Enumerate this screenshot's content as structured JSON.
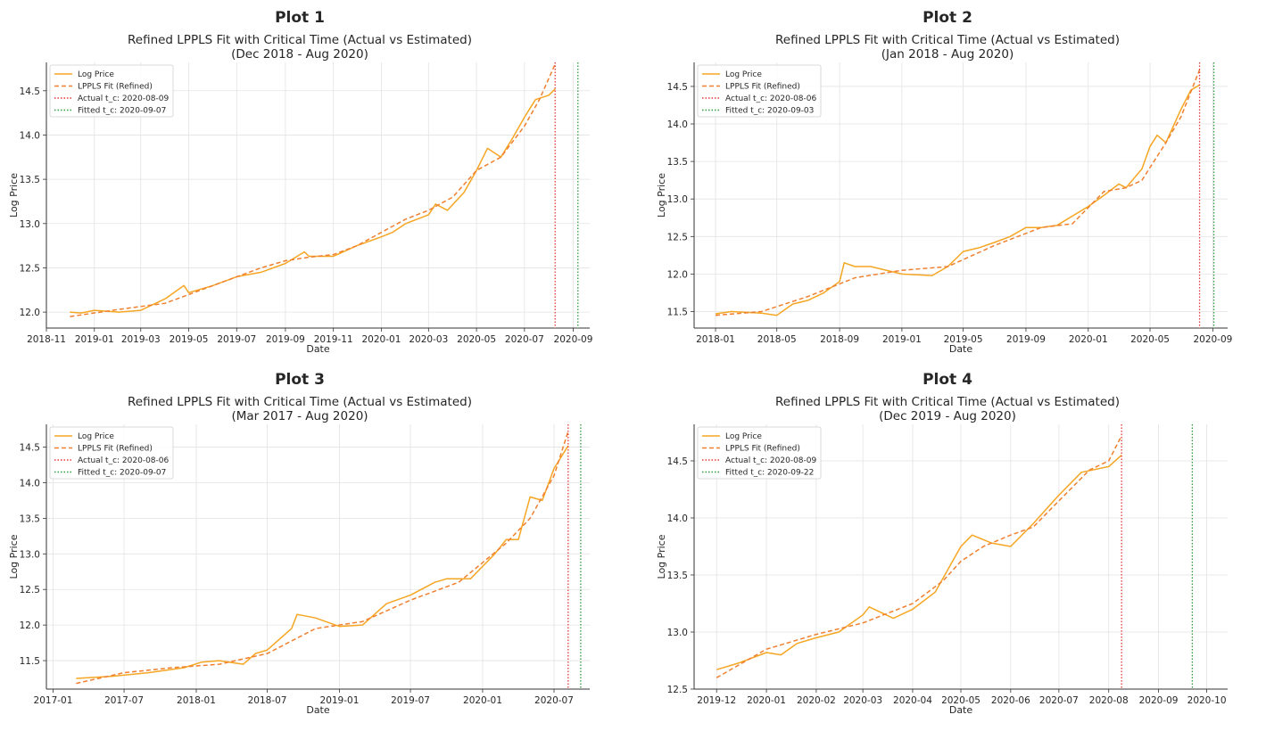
{
  "chart_data": [
    {
      "type": "line",
      "panel_title": "Plot 1",
      "title": "Refined LPPLS Fit with Critical Time (Actual vs Estimated)",
      "subtitle": "(Dec 2018 - Aug 2020)",
      "xlabel": "Date",
      "ylabel": "Log Price",
      "x_type": "date",
      "xlim": [
        "2018-11-01",
        "2020-09-22"
      ],
      "ylim": [
        11.82,
        14.82
      ],
      "xticks": [
        {
          "date": "2018-11-01",
          "label": "2018-11"
        },
        {
          "date": "2019-01-01",
          "label": "2019-01"
        },
        {
          "date": "2019-03-01",
          "label": "2019-03"
        },
        {
          "date": "2019-05-01",
          "label": "2019-05"
        },
        {
          "date": "2019-07-01",
          "label": "2019-07"
        },
        {
          "date": "2019-09-01",
          "label": "2019-09"
        },
        {
          "date": "2019-11-01",
          "label": "2019-11"
        },
        {
          "date": "2020-01-01",
          "label": "2020-01"
        },
        {
          "date": "2020-03-01",
          "label": "2020-03"
        },
        {
          "date": "2020-05-01",
          "label": "2020-05"
        },
        {
          "date": "2020-07-01",
          "label": "2020-07"
        },
        {
          "date": "2020-09-01",
          "label": "2020-09"
        }
      ],
      "yticks": [
        12.0,
        12.5,
        13.0,
        13.5,
        14.0,
        14.5
      ],
      "ytick_labels": [
        "12.0",
        "12.5",
        "13.0",
        "13.5",
        "14.0",
        "14.5"
      ],
      "grid": true,
      "legend_position": "top-left",
      "series": [
        {
          "name": "Log Price",
          "style": "solid",
          "color": "#f5a623",
          "x": [
            "2018-12-01",
            "2018-12-15",
            "2019-01-01",
            "2019-02-01",
            "2019-03-01",
            "2019-04-01",
            "2019-04-25",
            "2019-05-01",
            "2019-06-01",
            "2019-07-01",
            "2019-08-01",
            "2019-09-01",
            "2019-09-25",
            "2019-10-01",
            "2019-11-01",
            "2019-12-01",
            "2020-01-01",
            "2020-01-15",
            "2020-02-01",
            "2020-03-01",
            "2020-03-10",
            "2020-03-25",
            "2020-04-15",
            "2020-05-01",
            "2020-05-15",
            "2020-06-01",
            "2020-06-15",
            "2020-07-01",
            "2020-07-15",
            "2020-08-01",
            "2020-08-09"
          ],
          "y": [
            12.0,
            11.99,
            12.02,
            12.0,
            12.02,
            12.15,
            12.3,
            12.22,
            12.3,
            12.4,
            12.45,
            12.55,
            12.68,
            12.63,
            12.63,
            12.75,
            12.85,
            12.9,
            13.0,
            13.1,
            13.22,
            13.15,
            13.35,
            13.6,
            13.85,
            13.75,
            13.95,
            14.2,
            14.4,
            14.45,
            14.52
          ]
        },
        {
          "name": "LPPLS Fit (Refined)",
          "style": "dashed",
          "color": "#f08030",
          "x": [
            "2018-12-01",
            "2019-02-01",
            "2019-04-01",
            "2019-06-01",
            "2019-08-01",
            "2019-09-01",
            "2019-10-01",
            "2019-11-01",
            "2019-12-01",
            "2020-01-01",
            "2020-02-01",
            "2020-03-01",
            "2020-04-01",
            "2020-05-01",
            "2020-06-01",
            "2020-07-01",
            "2020-07-20",
            "2020-08-09"
          ],
          "y": [
            11.95,
            12.03,
            12.1,
            12.3,
            12.5,
            12.58,
            12.62,
            12.65,
            12.75,
            12.9,
            13.05,
            13.15,
            13.3,
            13.6,
            13.75,
            14.1,
            14.4,
            14.8
          ]
        }
      ],
      "vlines": [
        {
          "name": "Actual t_c: 2020-08-09",
          "date": "2020-08-09",
          "color": "#e53935"
        },
        {
          "name": "Fitted t_c: 2020-09-07",
          "date": "2020-09-07",
          "color": "#2e9c3a"
        }
      ]
    },
    {
      "type": "line",
      "panel_title": "Plot 2",
      "title": "Refined LPPLS Fit with Critical Time (Actual vs Estimated)",
      "subtitle": "(Jan 2018 - Aug 2020)",
      "xlabel": "Date",
      "ylabel": "Log Price",
      "x_type": "date",
      "xlim": [
        "2017-11-20",
        "2020-09-30"
      ],
      "ylim": [
        11.28,
        14.82
      ],
      "xticks": [
        {
          "date": "2018-01-01",
          "label": "2018-01"
        },
        {
          "date": "2018-05-01",
          "label": "2018-05"
        },
        {
          "date": "2018-09-01",
          "label": "2018-09"
        },
        {
          "date": "2019-01-01",
          "label": "2019-01"
        },
        {
          "date": "2019-05-01",
          "label": "2019-05"
        },
        {
          "date": "2019-09-01",
          "label": "2019-09"
        },
        {
          "date": "2020-01-01",
          "label": "2020-01"
        },
        {
          "date": "2020-05-01",
          "label": "2020-05"
        },
        {
          "date": "2020-09-01",
          "label": "2020-09"
        }
      ],
      "yticks": [
        11.5,
        12.0,
        12.5,
        13.0,
        13.5,
        14.0,
        14.5
      ],
      "ytick_labels": [
        "11.5",
        "12.0",
        "12.5",
        "13.0",
        "13.5",
        "14.0",
        "14.5"
      ],
      "grid": true,
      "legend_position": "top-left",
      "series": [
        {
          "name": "Log Price",
          "style": "solid",
          "color": "#f5a623",
          "x": [
            "2018-01-01",
            "2018-02-01",
            "2018-04-01",
            "2018-05-01",
            "2018-06-01",
            "2018-07-01",
            "2018-08-01",
            "2018-09-01",
            "2018-09-10",
            "2018-10-01",
            "2018-11-01",
            "2019-01-01",
            "2019-03-01",
            "2019-04-01",
            "2019-05-01",
            "2019-06-01",
            "2019-07-01",
            "2019-08-01",
            "2019-09-01",
            "2019-10-01",
            "2019-11-01",
            "2020-01-01",
            "2020-02-01",
            "2020-03-01",
            "2020-03-15",
            "2020-04-15",
            "2020-05-01",
            "2020-05-15",
            "2020-06-01",
            "2020-07-01",
            "2020-07-20",
            "2020-08-06"
          ],
          "y": [
            11.47,
            11.5,
            11.48,
            11.45,
            11.6,
            11.65,
            11.75,
            11.9,
            12.15,
            12.1,
            12.1,
            12.0,
            11.98,
            12.1,
            12.3,
            12.35,
            12.42,
            12.5,
            12.62,
            12.62,
            12.65,
            12.9,
            13.05,
            13.2,
            13.15,
            13.4,
            13.7,
            13.85,
            13.75,
            14.2,
            14.45,
            14.52
          ]
        },
        {
          "name": "LPPLS Fit (Refined)",
          "style": "dashed",
          "color": "#f08030",
          "x": [
            "2018-01-01",
            "2018-04-01",
            "2018-07-01",
            "2018-10-01",
            "2019-01-01",
            "2019-04-01",
            "2019-07-01",
            "2019-10-01",
            "2019-12-01",
            "2020-02-01",
            "2020-03-15",
            "2020-04-15",
            "2020-06-01",
            "2020-07-01",
            "2020-08-06"
          ],
          "y": [
            11.45,
            11.5,
            11.7,
            11.95,
            12.05,
            12.1,
            12.38,
            12.62,
            12.67,
            13.1,
            13.15,
            13.25,
            13.75,
            14.1,
            14.72
          ]
        }
      ],
      "vlines": [
        {
          "name": "Actual t_c: 2020-08-06",
          "date": "2020-08-06",
          "color": "#e53935"
        },
        {
          "name": "Fitted t_c: 2020-09-03",
          "date": "2020-09-03",
          "color": "#2e9c3a"
        }
      ]
    },
    {
      "type": "line",
      "panel_title": "Plot 3",
      "title": "Refined LPPLS Fit with Critical Time (Actual vs Estimated)",
      "subtitle": "(Mar 2017 - Aug 2020)",
      "xlabel": "Date",
      "ylabel": "Log Price",
      "x_type": "date",
      "xlim": [
        "2016-12-15",
        "2020-09-30"
      ],
      "ylim": [
        11.1,
        14.82
      ],
      "xticks": [
        {
          "date": "2017-01-01",
          "label": "2017-01"
        },
        {
          "date": "2017-07-01",
          "label": "2017-07"
        },
        {
          "date": "2018-01-01",
          "label": "2018-01"
        },
        {
          "date": "2018-07-01",
          "label": "2018-07"
        },
        {
          "date": "2019-01-01",
          "label": "2019-01"
        },
        {
          "date": "2019-07-01",
          "label": "2019-07"
        },
        {
          "date": "2020-01-01",
          "label": "2020-01"
        },
        {
          "date": "2020-07-01",
          "label": "2020-07"
        }
      ],
      "yticks": [
        11.5,
        12.0,
        12.5,
        13.0,
        13.5,
        14.0,
        14.5
      ],
      "ytick_labels": [
        "11.5",
        "12.0",
        "12.5",
        "13.0",
        "13.5",
        "14.0",
        "14.5"
      ],
      "grid": true,
      "legend_position": "top-left",
      "series": [
        {
          "name": "Log Price",
          "style": "solid",
          "color": "#f5a623",
          "x": [
            "2017-03-01",
            "2017-06-01",
            "2017-09-01",
            "2017-12-01",
            "2018-01-15",
            "2018-03-01",
            "2018-05-01",
            "2018-06-01",
            "2018-07-01",
            "2018-08-01",
            "2018-09-01",
            "2018-09-15",
            "2018-11-01",
            "2019-01-01",
            "2019-03-01",
            "2019-05-01",
            "2019-07-01",
            "2019-09-01",
            "2019-10-01",
            "2019-12-01",
            "2020-02-01",
            "2020-03-01",
            "2020-04-01",
            "2020-05-01",
            "2020-06-01",
            "2020-07-01",
            "2020-08-06"
          ],
          "y": [
            11.25,
            11.28,
            11.33,
            11.4,
            11.48,
            11.5,
            11.45,
            11.6,
            11.65,
            11.8,
            11.95,
            12.15,
            12.1,
            11.98,
            12.0,
            12.3,
            12.42,
            12.6,
            12.65,
            12.65,
            13.0,
            13.2,
            13.2,
            13.8,
            13.75,
            14.2,
            14.52
          ]
        },
        {
          "name": "LPPLS Fit (Refined)",
          "style": "dashed",
          "color": "#f08030",
          "x": [
            "2017-03-01",
            "2017-07-01",
            "2017-11-01",
            "2018-03-01",
            "2018-07-01",
            "2018-11-01",
            "2019-03-01",
            "2019-07-01",
            "2019-11-01",
            "2020-03-01",
            "2020-05-01",
            "2020-07-01",
            "2020-08-06"
          ],
          "y": [
            11.18,
            11.33,
            11.4,
            11.45,
            11.6,
            11.95,
            12.05,
            12.35,
            12.6,
            13.15,
            13.5,
            14.1,
            14.72
          ]
        }
      ],
      "vlines": [
        {
          "name": "Actual t_c: 2020-08-06",
          "date": "2020-08-06",
          "color": "#e53935"
        },
        {
          "name": "Fitted t_c: 2020-09-07",
          "date": "2020-09-07",
          "color": "#2e9c3a"
        }
      ]
    },
    {
      "type": "line",
      "panel_title": "Plot 4",
      "title": "Refined LPPLS Fit with Critical Time (Actual vs Estimated)",
      "subtitle": "(Dec 2019 - Aug 2020)",
      "xlabel": "Date",
      "ylabel": "Log Price",
      "x_type": "date",
      "xlim": [
        "2019-11-17",
        "2020-10-14"
      ],
      "ylim": [
        12.5,
        14.82
      ],
      "xticks": [
        {
          "date": "2019-12-01",
          "label": "2019-12"
        },
        {
          "date": "2020-01-01",
          "label": "2020-01"
        },
        {
          "date": "2020-02-01",
          "label": "2020-02"
        },
        {
          "date": "2020-03-01",
          "label": "2020-03"
        },
        {
          "date": "2020-04-01",
          "label": "2020-04"
        },
        {
          "date": "2020-05-01",
          "label": "2020-05"
        },
        {
          "date": "2020-06-01",
          "label": "2020-06"
        },
        {
          "date": "2020-07-01",
          "label": "2020-07"
        },
        {
          "date": "2020-08-01",
          "label": "2020-08"
        },
        {
          "date": "2020-09-01",
          "label": "2020-09"
        },
        {
          "date": "2020-10-01",
          "label": "2020-10"
        }
      ],
      "yticks": [
        12.5,
        13.0,
        13.5,
        14.0,
        14.5
      ],
      "ytick_labels": [
        "12.5",
        "13.0",
        "13.5",
        "14.0",
        "14.5"
      ],
      "grid": true,
      "legend_position": "top-left",
      "series": [
        {
          "name": "Log Price",
          "style": "solid",
          "color": "#f5a623",
          "x": [
            "2019-12-01",
            "2019-12-15",
            "2020-01-01",
            "2020-01-10",
            "2020-01-20",
            "2020-02-01",
            "2020-02-15",
            "2020-03-01",
            "2020-03-05",
            "2020-03-20",
            "2020-04-01",
            "2020-04-15",
            "2020-05-01",
            "2020-05-08",
            "2020-05-20",
            "2020-06-01",
            "2020-06-15",
            "2020-07-01",
            "2020-07-15",
            "2020-08-01",
            "2020-08-09"
          ],
          "y": [
            12.67,
            12.73,
            12.82,
            12.8,
            12.9,
            12.95,
            13.0,
            13.15,
            13.22,
            13.12,
            13.2,
            13.35,
            13.75,
            13.85,
            13.78,
            13.75,
            13.95,
            14.2,
            14.4,
            14.45,
            14.55
          ]
        },
        {
          "name": "LPPLS Fit (Refined)",
          "style": "dashed",
          "color": "#f08030",
          "x": [
            "2019-12-01",
            "2020-01-01",
            "2020-02-01",
            "2020-03-01",
            "2020-04-01",
            "2020-04-20",
            "2020-05-01",
            "2020-05-15",
            "2020-06-01",
            "2020-06-15",
            "2020-07-01",
            "2020-07-20",
            "2020-08-01",
            "2020-08-09"
          ],
          "y": [
            12.6,
            12.85,
            12.98,
            13.08,
            13.25,
            13.45,
            13.62,
            13.75,
            13.85,
            13.92,
            14.15,
            14.42,
            14.5,
            14.72
          ]
        }
      ],
      "vlines": [
        {
          "name": "Actual t_c: 2020-08-09",
          "date": "2020-08-09",
          "color": "#e53935"
        },
        {
          "name": "Fitted t_c: 2020-09-22",
          "date": "2020-09-22",
          "color": "#2e9c3a"
        }
      ]
    }
  ]
}
